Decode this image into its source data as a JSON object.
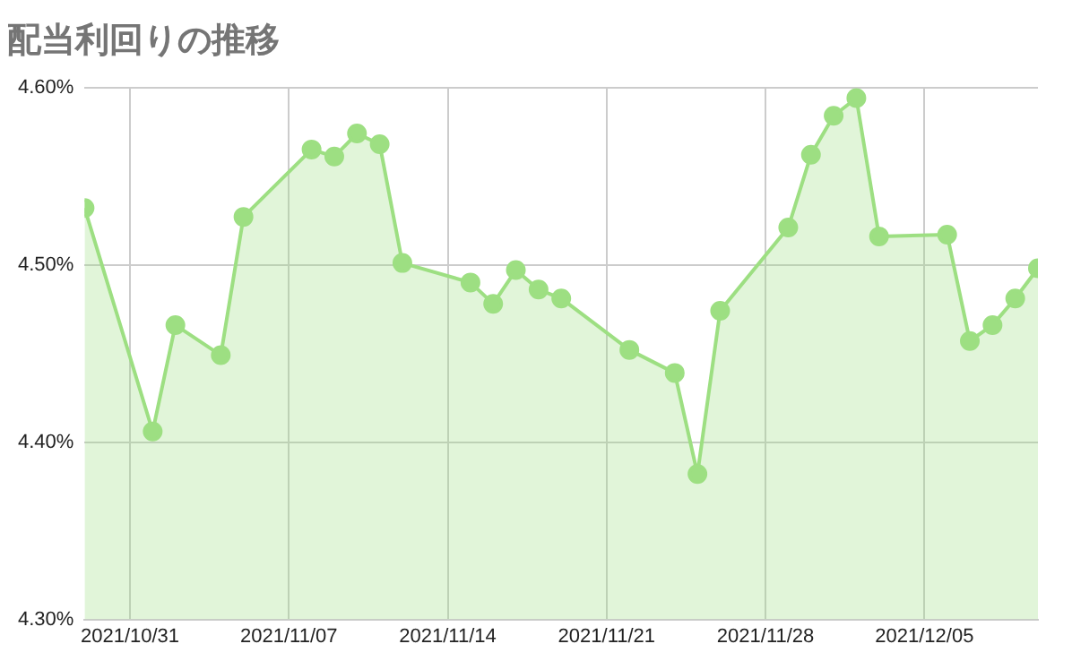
{
  "chart_data": {
    "type": "area",
    "title": "配当利回りの推移",
    "x": [
      "2021-10-29",
      "2021-11-01",
      "2021-11-02",
      "2021-11-04",
      "2021-11-05",
      "2021-11-08",
      "2021-11-09",
      "2021-11-10",
      "2021-11-11",
      "2021-11-12",
      "2021-11-15",
      "2021-11-16",
      "2021-11-17",
      "2021-11-18",
      "2021-11-19",
      "2021-11-22",
      "2021-11-24",
      "2021-11-25",
      "2021-11-26",
      "2021-11-29",
      "2021-11-30",
      "2021-12-01",
      "2021-12-02",
      "2021-12-03",
      "2021-12-06",
      "2021-12-07",
      "2021-12-08",
      "2021-12-09",
      "2021-12-10"
    ],
    "series": [
      {
        "color": "#9ddf82",
        "values": [
          4.532,
          4.406,
          4.466,
          4.449,
          4.527,
          4.565,
          4.561,
          4.574,
          4.568,
          4.501,
          4.49,
          4.478,
          4.497,
          4.486,
          4.481,
          4.452,
          4.439,
          4.382,
          4.474,
          4.521,
          4.562,
          4.584,
          4.594,
          4.516,
          4.517,
          4.457,
          4.466,
          4.481,
          4.498
        ]
      }
    ],
    "xlim": [
      "2021-10-29",
      "2021-12-10"
    ],
    "xticks": [
      {
        "value": "2021-10-31",
        "label": "2021/10/31"
      },
      {
        "value": "2021-11-07",
        "label": "2021/11/07"
      },
      {
        "value": "2021-11-14",
        "label": "2021/11/14"
      },
      {
        "value": "2021-11-21",
        "label": "2021/11/21"
      },
      {
        "value": "2021-11-28",
        "label": "2021/11/28"
      },
      {
        "value": "2021-12-05",
        "label": "2021/12/05"
      }
    ],
    "ylim": [
      4.3,
      4.6
    ],
    "yticks": [
      {
        "value": 4.3,
        "label": "4.30%"
      },
      {
        "value": 4.4,
        "label": "4.40%"
      },
      {
        "value": 4.5,
        "label": "4.50%"
      },
      {
        "value": 4.6,
        "label": "4.60%"
      }
    ],
    "grid": true,
    "marker": "circle",
    "line_style": "solid"
  }
}
